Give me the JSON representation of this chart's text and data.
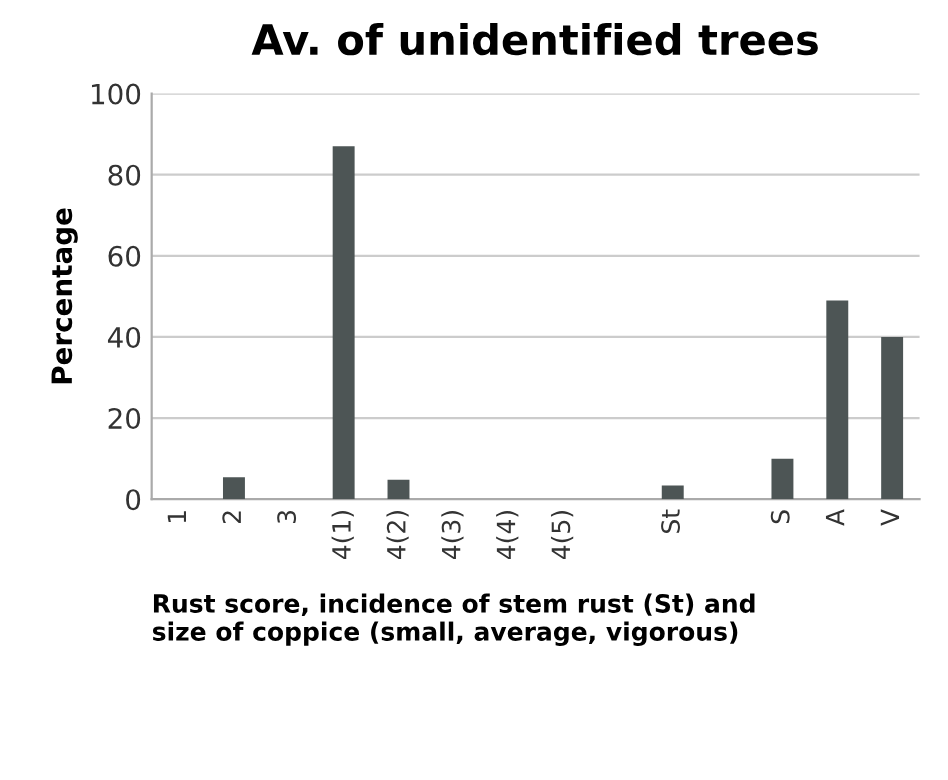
{
  "chart_data": {
    "type": "bar",
    "title": "Av. of unidentified trees",
    "ylabel": "Percentage",
    "xlabel": "Rust score, incidence of stem rust (St) and\nsize of coppice (small, average, vigorous)",
    "categories": [
      "1",
      "2",
      "3",
      "4(1)",
      "4(2)",
      "4(3)",
      "4(4)",
      "4(5)",
      null,
      "St",
      null,
      "S",
      "A",
      "V"
    ],
    "values": [
      0,
      5.4,
      0,
      87,
      4.8,
      0,
      0,
      0,
      0,
      3.4,
      0,
      10,
      49,
      40
    ],
    "color": "#4d5555",
    "ylim": [
      0,
      100
    ],
    "yticks": [
      0,
      20,
      40,
      60,
      80,
      100
    ],
    "grid": "y"
  }
}
